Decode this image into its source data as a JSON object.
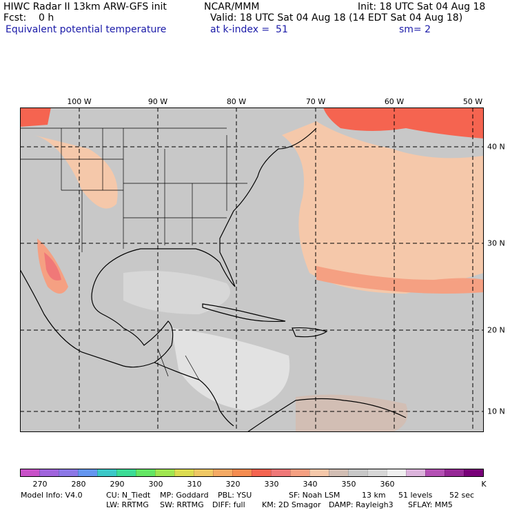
{
  "header": {
    "left1": "HIWC Radar II 13km ARW-GFS init",
    "center1": "NCAR/MMM",
    "right1": "Init: 18 UTC Sat 04 Aug 18",
    "left2": "Fcst:    0 h",
    "right2": "Valid: 18 UTC Sat 04 Aug 18 (14 EDT Sat 04 Aug 18)",
    "field": "Equivalent potential temperature",
    "level": "at k-index =  51",
    "smooth": "sm= 2"
  },
  "map": {
    "lon_labels": [
      "100 W",
      "90 W",
      "80 W",
      "70 W",
      "60 W",
      "50 W"
    ],
    "lat_labels": [
      "40 N",
      "30 N",
      "20 N",
      "10 N"
    ],
    "ocean_color": "#c8c8c8",
    "land_line_color": "#000000"
  },
  "colorbar": {
    "colors": [
      "#c850c8",
      "#a064dc",
      "#8c78e6",
      "#6496f0",
      "#3cc8c8",
      "#3cdc96",
      "#64e664",
      "#a0e650",
      "#dcdc50",
      "#f0c864",
      "#f5aa64",
      "#f58c50",
      "#f56450",
      "#f07878",
      "#f5a082",
      "#f5c8aa",
      "#d2beb4",
      "#c8c8c8",
      "#d7d7d7",
      "#f0f0f0",
      "#dcb4dc",
      "#b450b4",
      "#962896",
      "#780078"
    ],
    "labels": [
      "270",
      "280",
      "290",
      "300",
      "310",
      "320",
      "330",
      "340",
      "350",
      "360"
    ],
    "unit": "K"
  },
  "footer": {
    "line1": [
      "Model Info: V4.0",
      "CU: N_Tiedt",
      "MP: Goddard",
      "PBL: YSU",
      "SF: Noah LSM",
      "13 km",
      "51 levels",
      "52 sec"
    ],
    "line2": [
      "LW: RRTMG",
      "SW: RRTMG",
      "DIFF: full",
      "KM: 2D Smagor",
      "DAMP: Rayleigh3",
      "SFLAY: MM5"
    ]
  }
}
